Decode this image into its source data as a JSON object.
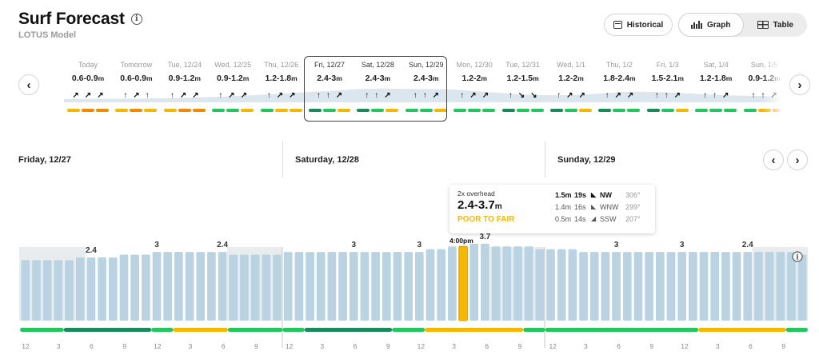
{
  "header": {
    "title": "Surf Forecast",
    "subtitle": "LOTUS Model"
  },
  "controls": {
    "historical_label": "Historical",
    "view_toggle": [
      {
        "label": "Graph",
        "active": true
      },
      {
        "label": "Table",
        "active": false
      }
    ]
  },
  "days": [
    {
      "name": "Today",
      "value": "0.6-0.9",
      "unit": "m",
      "arrows": [
        "↗",
        "↗",
        "↗"
      ],
      "bars": [
        "#f5b800",
        "#f08a00",
        "#f08a00"
      ]
    },
    {
      "name": "Tomorrow",
      "value": "0.6-0.9",
      "unit": "m",
      "arrows": [
        "↑",
        "↗",
        "↑"
      ],
      "bars": [
        "#f5b800",
        "#f08a00",
        "#f5b800"
      ]
    },
    {
      "name": "Tue, 12/24",
      "value": "0.9-1.2",
      "unit": "m",
      "arrows": [
        "↑",
        "↗",
        "↗"
      ],
      "bars": [
        "#f5b800",
        "#f08a00",
        "#f08a00"
      ]
    },
    {
      "name": "Wed, 12/25",
      "value": "0.9-1.2",
      "unit": "m",
      "arrows": [
        "↑",
        "↗",
        "↗"
      ],
      "bars": [
        "#22c55e",
        "#22c55e",
        "#f5b800"
      ]
    },
    {
      "name": "Thu, 12/26",
      "value": "1.2-1.8",
      "unit": "m",
      "arrows": [
        "↑",
        "↗",
        "↗"
      ],
      "bars": [
        "#22c55e",
        "#f5b800",
        "#f5b800"
      ]
    },
    {
      "name": "Fri, 12/27",
      "value": "2.4-3",
      "unit": "m",
      "arrows": [
        "↑",
        "↑",
        "↗"
      ],
      "bars": [
        "#1a8a5c",
        "#22c55e",
        "#f5b800"
      ],
      "selected": true
    },
    {
      "name": "Sat, 12/28",
      "value": "2.4-3",
      "unit": "m",
      "arrows": [
        "↑",
        "↑",
        "↗"
      ],
      "bars": [
        "#1a8a5c",
        "#22c55e",
        "#f5b800"
      ],
      "selected": true
    },
    {
      "name": "Sun, 12/29",
      "value": "2.4-3",
      "unit": "m",
      "arrows": [
        "↑",
        "↑",
        "↗"
      ],
      "bars": [
        "#22c55e",
        "#22c55e",
        "#f5b800"
      ],
      "selected": true
    },
    {
      "name": "Mon, 12/30",
      "value": "1.2-2",
      "unit": "m",
      "arrows": [
        "↑",
        "↗",
        "↗"
      ],
      "bars": [
        "#22c55e",
        "#22c55e",
        "#22c55e"
      ]
    },
    {
      "name": "Tue, 12/31",
      "value": "1.2-1.5",
      "unit": "m",
      "arrows": [
        "↑",
        "↘",
        "↘"
      ],
      "bars": [
        "#1a8a5c",
        "#22c55e",
        "#22c55e"
      ]
    },
    {
      "name": "Wed, 1/1",
      "value": "1.2-2",
      "unit": "m",
      "arrows": [
        "↑",
        "↗",
        "↗"
      ],
      "bars": [
        "#1a8a5c",
        "#22c55e",
        "#f5b800"
      ]
    },
    {
      "name": "Thu, 1/2",
      "value": "1.8-2.4",
      "unit": "m",
      "arrows": [
        "↑",
        "↗",
        "↗"
      ],
      "bars": [
        "#1a8a5c",
        "#22c55e",
        "#22c55e"
      ]
    },
    {
      "name": "Fri, 1/3",
      "value": "1.5-2.1",
      "unit": "m",
      "arrows": [
        "↑",
        "↑",
        "↗"
      ],
      "bars": [
        "#1a8a5c",
        "#22c55e",
        "#f5b800"
      ]
    },
    {
      "name": "Sat, 1/4",
      "value": "1.2-1.8",
      "unit": "m",
      "arrows": [
        "↑",
        "↑",
        "↗"
      ],
      "bars": [
        "#22c55e",
        "#22c55e",
        "#22c55e"
      ]
    },
    {
      "name": "Sun, 1/5",
      "value": "0.9-1.2",
      "unit": "m",
      "arrows": [
        "↑",
        "↑",
        "↗"
      ],
      "bars": [
        "#22c55e",
        "#f5b800",
        "#f08a00"
      ]
    }
  ],
  "sections": [
    {
      "label": "Friday, 12/27"
    },
    {
      "label": "Saturday, 12/28"
    },
    {
      "label": "Sunday, 12/29"
    }
  ],
  "tooltip": {
    "label": "2x overhead",
    "range": "2.4-3.7",
    "unit": "m",
    "rating": "POOR TO FAIR",
    "rating_color": "#f5b800",
    "swells": [
      {
        "height": "1.5m",
        "period": "19s",
        "arrow": "◣",
        "direction": "NW",
        "degrees": "306°"
      },
      {
        "height": "1.4m",
        "period": "16s",
        "arrow": "◣",
        "direction": "WNW",
        "degrees": "299°"
      },
      {
        "height": "0.5m",
        "period": "14s",
        "arrow": "◢",
        "direction": "SSW",
        "degrees": "207°"
      }
    ]
  },
  "cursor_time": "4:00pm",
  "chart_data": {
    "type": "bar",
    "highlight_index": 40,
    "highlight_color": "#f5b800",
    "bar_color": "#b9d3e3",
    "annotations": [
      {
        "index": 6,
        "text": "2.4"
      },
      {
        "index": 12,
        "text": "3"
      },
      {
        "index": 18,
        "text": "2.4"
      },
      {
        "index": 30,
        "text": "3"
      },
      {
        "index": 36,
        "text": "3"
      },
      {
        "index": 42,
        "text": "3.7"
      },
      {
        "index": 54,
        "text": "3"
      },
      {
        "index": 60,
        "text": "3"
      },
      {
        "index": 66,
        "text": "2.4"
      }
    ],
    "values": [
      2.2,
      2.2,
      2.2,
      2.2,
      2.2,
      2.3,
      2.3,
      2.3,
      2.3,
      2.4,
      2.4,
      2.4,
      2.5,
      2.5,
      2.5,
      2.5,
      2.5,
      2.5,
      2.5,
      2.4,
      2.4,
      2.4,
      2.4,
      2.4,
      2.5,
      2.5,
      2.5,
      2.5,
      2.5,
      2.5,
      2.5,
      2.5,
      2.5,
      2.5,
      2.5,
      2.5,
      2.5,
      2.6,
      2.6,
      2.7,
      2.7,
      2.8,
      2.8,
      2.7,
      2.7,
      2.7,
      2.7,
      2.6,
      2.6,
      2.6,
      2.6,
      2.5,
      2.5,
      2.5,
      2.5,
      2.5,
      2.5,
      2.5,
      2.5,
      2.5,
      2.5,
      2.5,
      2.5,
      2.5,
      2.5,
      2.5,
      2.5,
      2.5,
      2.5,
      2.5,
      2.5,
      2.4
    ],
    "condition_segments": [
      {
        "from": 0,
        "to": 4,
        "color": "#22c55e"
      },
      {
        "from": 4,
        "to": 12,
        "color": "#1a8a5c"
      },
      {
        "from": 12,
        "to": 14,
        "color": "#22c55e"
      },
      {
        "from": 14,
        "to": 19,
        "color": "#f5b800"
      },
      {
        "from": 19,
        "to": 24,
        "color": "#22c55e"
      },
      {
        "from": 24,
        "to": 26,
        "color": "#22c55e"
      },
      {
        "from": 26,
        "to": 34,
        "color": "#1a8a5c"
      },
      {
        "from": 34,
        "to": 37,
        "color": "#22c55e"
      },
      {
        "from": 37,
        "to": 46,
        "color": "#f5b800"
      },
      {
        "from": 46,
        "to": 48,
        "color": "#22c55e"
      },
      {
        "from": 48,
        "to": 62,
        "color": "#22c55e"
      },
      {
        "from": 62,
        "to": 70,
        "color": "#f5b800"
      },
      {
        "from": 70,
        "to": 72,
        "color": "#22c55e"
      }
    ],
    "night_shading": [
      {
        "from": 0,
        "to": 6
      },
      {
        "from": 19,
        "to": 24
      },
      {
        "from": 43,
        "to": 48
      },
      {
        "from": 67,
        "to": 72
      }
    ],
    "hour_labels": [
      "12",
      "3",
      "6",
      "9",
      "12",
      "3",
      "6",
      "9",
      "12",
      "3",
      "6",
      "9",
      "12",
      "3",
      "6",
      "9",
      "12",
      "3",
      "6",
      "9",
      "12",
      "3",
      "6",
      "9"
    ]
  }
}
